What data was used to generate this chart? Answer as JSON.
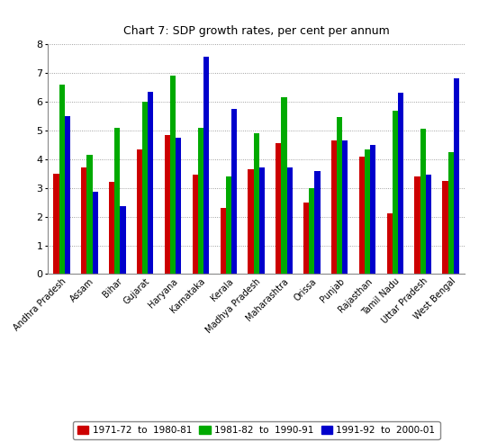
{
  "title": "Chart 7: SDP growth rates, per cent per annum",
  "categories": [
    "Andhra Pradesh",
    "Assam",
    "Bihar",
    "Gujarat",
    "Haryana",
    "Karnataka",
    "Kerala",
    "Madhya Pradesh",
    "Maharashtra",
    "Orissa",
    "Punjab",
    "Rajasthan",
    "Tamil Nadu",
    "Uttar Pradesh",
    "West Bengal"
  ],
  "series": [
    {
      "label": "1971-72  to  1980-81",
      "color": "#cc0000",
      "values": [
        3.5,
        3.7,
        3.2,
        4.35,
        4.85,
        3.45,
        2.3,
        3.65,
        4.55,
        2.5,
        4.65,
        4.1,
        2.1,
        3.4,
        3.25
      ]
    },
    {
      "label": "1981-82  to  1990-91",
      "color": "#00aa00",
      "values": [
        6.6,
        4.15,
        5.1,
        6.0,
        6.9,
        5.1,
        3.4,
        4.9,
        6.15,
        2.98,
        5.45,
        4.35,
        5.7,
        5.05,
        4.25
      ]
    },
    {
      "label": "1991-92  to  2000-01",
      "color": "#0000cc",
      "values": [
        5.5,
        2.85,
        2.35,
        6.35,
        4.75,
        7.55,
        5.75,
        3.7,
        3.7,
        3.57,
        4.65,
        4.5,
        6.3,
        3.45,
        6.8
      ]
    }
  ],
  "ylim": [
    0,
    8
  ],
  "yticks": [
    0,
    1,
    2,
    3,
    4,
    5,
    6,
    7,
    8
  ],
  "background_color": "#ffffff",
  "plot_background": "#ffffff",
  "grid_color": "#888888",
  "title_fontsize": 9,
  "legend_fontsize": 7.5,
  "bar_width": 0.2,
  "figsize": [
    5.32,
    4.91
  ],
  "dpi": 100
}
